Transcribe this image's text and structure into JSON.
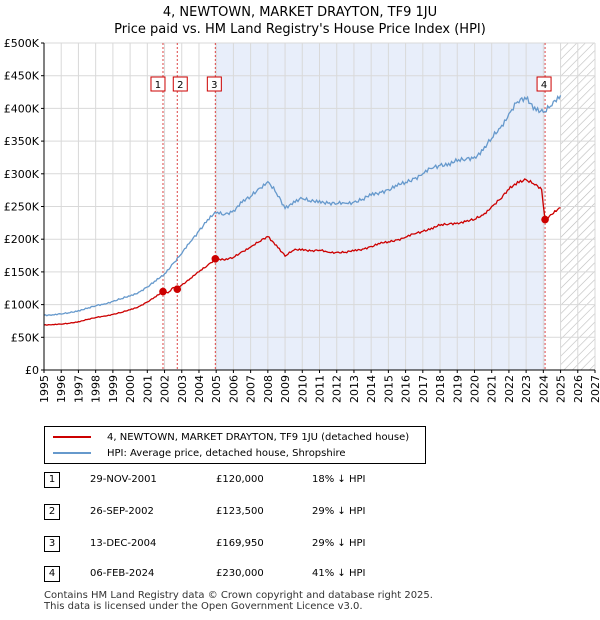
{
  "title_line1": "4, NEWTOWN, MARKET DRAYTON, TF9 1JU",
  "title_line2": "Price paid vs. HM Land Registry's House Price Index (HPI)",
  "legend": {
    "property": "4, NEWTOWN, MARKET DRAYTON, TF9 1JU (detached house)",
    "hpi": "HPI: Average price, detached house, Shropshire"
  },
  "colors": {
    "property": "#cc0000",
    "hpi": "#6699cc",
    "shade": "#e8eefa",
    "grid": "#d9d9d9"
  },
  "sales": [
    {
      "num": "1",
      "date": "29-NOV-2001",
      "price": "£120,000",
      "hpi": "18% ↓ HPI"
    },
    {
      "num": "2",
      "date": "26-SEP-2002",
      "price": "£123,500",
      "hpi": "29% ↓ HPI"
    },
    {
      "num": "3",
      "date": "13-DEC-2004",
      "price": "£169,950",
      "hpi": "29% ↓ HPI"
    },
    {
      "num": "4",
      "date": "06-FEB-2024",
      "price": "£230,000",
      "hpi": "41% ↓ HPI"
    }
  ],
  "footer_line1": "Contains HM Land Registry data © Crown copyright and database right 2025.",
  "footer_line2": "This data is licensed under the Open Government Licence v3.0.",
  "chart_data": {
    "type": "line",
    "title": "4, NEWTOWN, MARKET DRAYTON, TF9 1JU",
    "subtitle": "Price paid vs. HM Land Registry's House Price Index (HPI)",
    "xlim": [
      1995,
      2027
    ],
    "ylim": [
      0,
      500000
    ],
    "xticks": [
      "1995",
      "1996",
      "1997",
      "1998",
      "1999",
      "2000",
      "2001",
      "2002",
      "2003",
      "2004",
      "2005",
      "2006",
      "2007",
      "2008",
      "2009",
      "2010",
      "2011",
      "2012",
      "2013",
      "2014",
      "2015",
      "2016",
      "2017",
      "2018",
      "2019",
      "2020",
      "2021",
      "2022",
      "2023",
      "2024",
      "2025",
      "2026",
      "2027"
    ],
    "yticks": [
      {
        "value": 0,
        "label": "£0"
      },
      {
        "value": 50000,
        "label": "£50K"
      },
      {
        "value": 100000,
        "label": "£100K"
      },
      {
        "value": 150000,
        "label": "£150K"
      },
      {
        "value": 200000,
        "label": "£200K"
      },
      {
        "value": 250000,
        "label": "£250K"
      },
      {
        "value": 300000,
        "label": "£300K"
      },
      {
        "value": 350000,
        "label": "£350K"
      },
      {
        "value": 400000,
        "label": "£400K"
      },
      {
        "value": 450000,
        "label": "£450K"
      },
      {
        "value": 500000,
        "label": "£500K"
      }
    ],
    "shaded_ranges": [
      [
        2004.95,
        2024.1
      ]
    ],
    "hatched_from": 2025.0,
    "series": [
      {
        "name": "HPI: Average price, detached house, Shropshire",
        "x": [
          1995,
          1995.5,
          1996,
          1996.5,
          1997,
          1997.5,
          1998,
          1998.5,
          1999,
          1999.5,
          2000,
          2000.5,
          2001,
          2001.5,
          2002,
          2002.5,
          2003,
          2003.5,
          2004,
          2004.5,
          2005,
          2005.5,
          2006,
          2006.5,
          2007,
          2007.5,
          2008,
          2008.5,
          2009,
          2009.5,
          2010,
          2010.5,
          2011,
          2011.5,
          2012,
          2012.5,
          2013,
          2013.5,
          2014,
          2014.5,
          2015,
          2015.5,
          2016,
          2016.5,
          2017,
          2017.5,
          2018,
          2018.5,
          2019,
          2019.5,
          2020,
          2020.5,
          2021,
          2021.5,
          2022,
          2022.5,
          2023,
          2023.5,
          2024,
          2024.5,
          2025
        ],
        "values": [
          84000,
          84500,
          85500,
          87500,
          91000,
          94000,
          98000,
          101000,
          105000,
          109000,
          113000,
          119000,
          127000,
          136000,
          147000,
          163000,
          178000,
          196000,
          213000,
          230000,
          240000,
          238000,
          244000,
          256000,
          265000,
          278000,
          288000,
          270000,
          247000,
          258000,
          262000,
          257000,
          259000,
          255000,
          254000,
          255000,
          257000,
          261000,
          267000,
          272000,
          276000,
          281000,
          287000,
          293000,
          300000,
          308000,
          313000,
          316000,
          319000,
          322000,
          326000,
          336000,
          354000,
          370000,
          392000,
          410000,
          414000,
          402000,
          394000,
          404000,
          420000
        ]
      },
      {
        "name": "4, NEWTOWN, MARKET DRAYTON, TF9 1JU (detached house)",
        "x": [
          1995,
          1995.5,
          1996,
          1996.5,
          1997,
          1997.5,
          1998,
          1998.5,
          1999,
          1999.5,
          2000,
          2000.5,
          2001,
          2001.5,
          2001.91,
          2002.2,
          2002.5,
          2002.74,
          2003,
          2003.5,
          2004,
          2004.5,
          2004.95,
          2005.5,
          2006,
          2006.5,
          2007,
          2007.5,
          2008,
          2008.5,
          2009,
          2009.5,
          2010,
          2010.5,
          2011,
          2011.5,
          2012,
          2012.5,
          2013,
          2013.5,
          2014,
          2014.5,
          2015,
          2015.5,
          2016,
          2016.5,
          2017,
          2017.5,
          2018,
          2018.5,
          2019,
          2019.5,
          2020,
          2020.5,
          2021,
          2021.5,
          2022,
          2022.5,
          2023,
          2023.5,
          2023.9,
          2024.1,
          2024.5,
          2025
        ],
        "values": [
          69000,
          69500,
          70000,
          71500,
          74000,
          77000,
          80000,
          82500,
          85000,
          88000,
          92000,
          97000,
          104000,
          112000,
          120000,
          118000,
          126000,
          123500,
          130000,
          140000,
          150000,
          160000,
          169950,
          168000,
          172000,
          181000,
          188000,
          196000,
          204000,
          191000,
          174000,
          183000,
          185000,
          182000,
          183000,
          180000,
          180000,
          180000,
          182000,
          185000,
          189000,
          193000,
          196000,
          199000,
          203000,
          208000,
          212000,
          217000,
          221000,
          223000,
          225000,
          227000,
          230000,
          237000,
          250000,
          261000,
          276000,
          288000,
          291000,
          283000,
          276000,
          230000,
          238000,
          248000
        ]
      }
    ],
    "sale_points": [
      {
        "label": "1",
        "x": 2001.91,
        "value": 120000
      },
      {
        "label": "2",
        "x": 2002.74,
        "value": 123500
      },
      {
        "label": "3",
        "x": 2004.95,
        "value": 169950
      },
      {
        "label": "4",
        "x": 2024.1,
        "value": 230000
      }
    ]
  }
}
